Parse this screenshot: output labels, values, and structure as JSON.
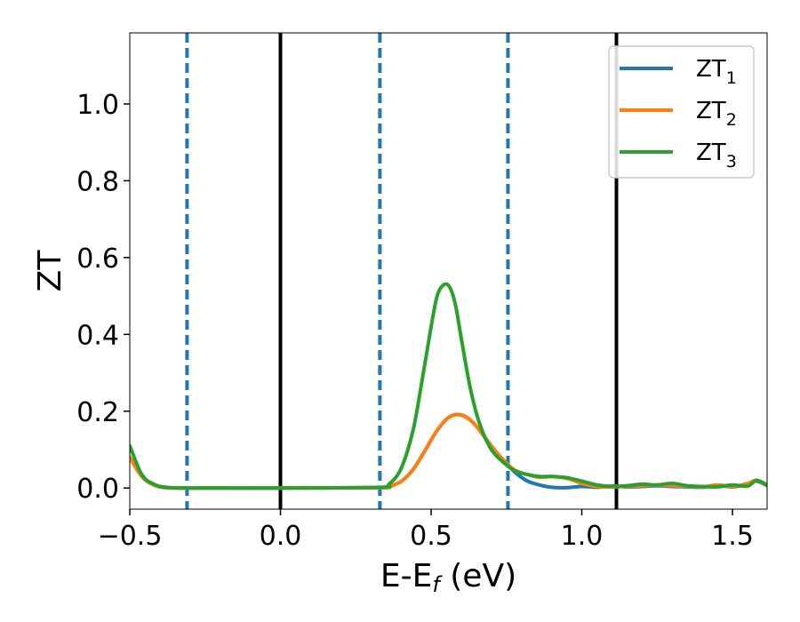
{
  "chart_data": {
    "type": "line",
    "title": "",
    "xlabel": {
      "base": "E-E",
      "subscript": "f",
      "suffix": " (eV)"
    },
    "ylabel": "ZT",
    "xlim": [
      -0.5,
      1.615
    ],
    "ylim": [
      -0.055,
      1.185
    ],
    "xticks": [
      -0.5,
      0.0,
      0.5,
      1.0,
      1.5
    ],
    "xtick_labels": [
      "−0.5",
      "0.0",
      "0.5",
      "1.0",
      "1.5"
    ],
    "yticks": [
      0.0,
      0.2,
      0.4,
      0.6,
      0.8,
      1.0
    ],
    "ytick_labels": [
      "0.0",
      "0.2",
      "0.4",
      "0.6",
      "0.8",
      "1.0"
    ],
    "grid": false,
    "legend_position": "top-right",
    "vlines": [
      {
        "x": -0.31,
        "style": "dashed",
        "color": "#1f77b4"
      },
      {
        "x": 0.0,
        "style": "solid",
        "color": "#000000"
      },
      {
        "x": 0.33,
        "style": "dashed",
        "color": "#1f77b4"
      },
      {
        "x": 0.755,
        "style": "dashed",
        "color": "#1f77b4"
      },
      {
        "x": 1.115,
        "style": "solid",
        "color": "#000000"
      }
    ],
    "series": [
      {
        "name": "ZT",
        "subscript": "1",
        "color": "#1f77b4",
        "x": [
          -0.5,
          -0.46,
          -0.42,
          -0.38,
          -0.3,
          0.0,
          0.33,
          0.36,
          0.4,
          0.44,
          0.48,
          0.52,
          0.56,
          0.6,
          0.64,
          0.68,
          0.72,
          0.75,
          0.78,
          0.82,
          0.86,
          0.9,
          0.95,
          1.0,
          1.05,
          1.1,
          1.15,
          1.2,
          1.25,
          1.3,
          1.35,
          1.4,
          1.45,
          1.5,
          1.55,
          1.58,
          1.615
        ],
        "y": [
          0.08,
          0.03,
          0.008,
          0.001,
          0.0,
          0.0,
          0.001,
          0.004,
          0.017,
          0.048,
          0.098,
          0.15,
          0.185,
          0.19,
          0.17,
          0.13,
          0.09,
          0.065,
          0.04,
          0.018,
          0.008,
          0.002,
          0.001,
          0.004,
          0.002,
          0.005,
          0.003,
          0.004,
          0.006,
          0.004,
          0.003,
          0.002,
          0.007,
          0.003,
          0.01,
          0.018,
          0.006
        ]
      },
      {
        "name": "ZT",
        "subscript": "2",
        "color": "#ff7f0e",
        "x": [
          -0.5,
          -0.46,
          -0.42,
          -0.38,
          -0.3,
          0.0,
          0.33,
          0.36,
          0.4,
          0.44,
          0.48,
          0.52,
          0.56,
          0.6,
          0.64,
          0.68,
          0.72,
          0.75,
          0.78,
          0.82,
          0.86,
          0.9,
          0.95,
          1.0,
          1.05,
          1.1,
          1.15,
          1.2,
          1.25,
          1.3,
          1.35,
          1.4,
          1.45,
          1.5,
          1.55,
          1.58,
          1.615
        ],
        "y": [
          0.08,
          0.03,
          0.008,
          0.001,
          0.0,
          0.0,
          0.001,
          0.004,
          0.017,
          0.048,
          0.098,
          0.15,
          0.185,
          0.19,
          0.17,
          0.13,
          0.09,
          0.065,
          0.045,
          0.035,
          0.028,
          0.03,
          0.025,
          0.012,
          0.004,
          0.003,
          0.005,
          0.006,
          0.008,
          0.006,
          0.005,
          0.003,
          0.008,
          0.004,
          0.012,
          0.02,
          0.007
        ]
      },
      {
        "name": "ZT",
        "subscript": "3",
        "color": "#2ca02c",
        "x": [
          -0.5,
          -0.46,
          -0.42,
          -0.38,
          -0.3,
          0.0,
          0.33,
          0.36,
          0.4,
          0.44,
          0.47,
          0.5,
          0.52,
          0.54,
          0.56,
          0.58,
          0.6,
          0.63,
          0.66,
          0.7,
          0.75,
          0.78,
          0.82,
          0.86,
          0.9,
          0.95,
          1.0,
          1.05,
          1.1,
          1.15,
          1.2,
          1.25,
          1.3,
          1.35,
          1.4,
          1.45,
          1.5,
          1.55,
          1.58,
          1.615
        ],
        "y": [
          0.11,
          0.035,
          0.01,
          0.002,
          0.0,
          0.0,
          0.002,
          0.01,
          0.05,
          0.15,
          0.28,
          0.42,
          0.5,
          0.528,
          0.525,
          0.48,
          0.39,
          0.26,
          0.17,
          0.1,
          0.06,
          0.045,
          0.035,
          0.03,
          0.03,
          0.027,
          0.018,
          0.008,
          0.004,
          0.006,
          0.01,
          0.008,
          0.012,
          0.006,
          0.004,
          0.003,
          0.008,
          0.005,
          0.02,
          0.008
        ]
      }
    ]
  }
}
